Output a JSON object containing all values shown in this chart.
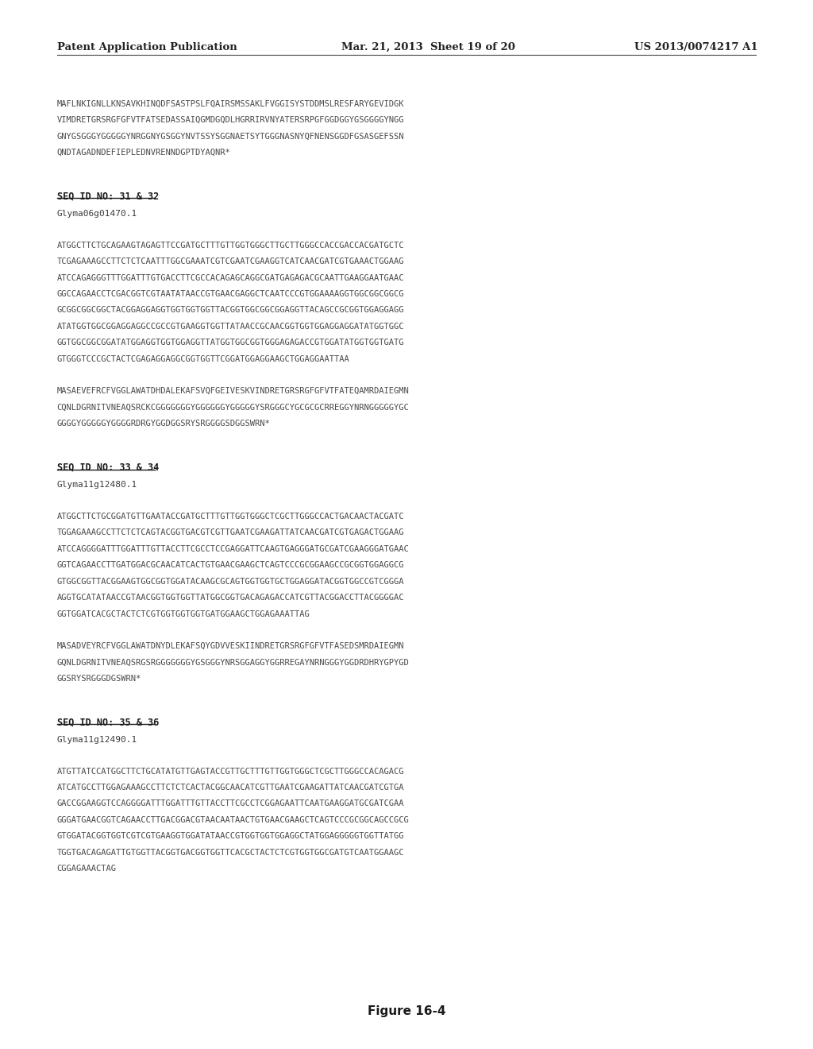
{
  "bg_color": "#ffffff",
  "header_left": "Patent Application Publication",
  "header_mid": "Mar. 21, 2013  Sheet 19 of 20",
  "header_right": "US 2013/0074217 A1",
  "figure_caption": "Figure 16-4",
  "text_color": "#3a3a3a",
  "mono_color": "#4a4a4a",
  "sections": [
    {
      "type": "sequence_block",
      "text": "MAFLNKIGNLLKNSAVKHINQDFSASTPSLFQAIRSMSSAKLFVGGISYSTDDMSLRESFARYGEVIDGK\nVIMDRETGRSRGFGFVTFATSEDASSAIQGMDGQDLHGRRIRVNYATERSRPGFGGDGGYGSGGGGYNGG\nGNYGSGGGYGGGGGYNRGGNYGSGGYNVTSSYSGGNAETSYTGGGNASNYQFNENSGGDFGSASGEFSSN\nQNDTAGADNDEFIEPLEDNVRENNDGPTDYAQNR*"
    },
    {
      "type": "seq_id",
      "label": "SEQ ID NO: 31 & 32",
      "sublabel": "Glyma06g01470.1"
    },
    {
      "type": "sequence_block",
      "text": "ATGGCTTCTGCAGAAGTAGAGTTCCGATGCTTTGTTGGTGGGCTTGCTTGGGCCACCGACCACGATGCTC\nTCGAGAAAGCCTTCTCTCAATTTGGCGAAATCGTCGAATCGAAGGTCATCAACGATCGTGAAACTGGAAG\nATCCAGAGGGTTTGGATTTGTGACCTTCGCCACAGAGCAGGCGATGAGAGACGCAATTGAAGGAATGAAC\nGGCCAGAACCTCGACGGTCGTAATATAACCGTGAACGAGGCTCAATCCCGTGGAAAAGGTGGCGGCGGCG\nGCGGCGGCGGCTACGGAGGAGGTGGTGGTGGTTACGGTGGCGGCGGAGGTTACAGCCGCGGTGGAGGAGG\nATATGGTGGCGGAGGAGGCCGCCGTGAAGGTGGTTATAACCGCAACGGTGGTGGAGGAGGATATGGTGGC\nGGTGGCGGCGGATATGGAGGTGGTGGAGGTTATGGTGGCGGTGGGAGAGACCGTGGATATGGTGGTGATG\nGTGGGTCCCGCTACTCGAGAGGAGGCGGTGGTTCGGATGGAGGAAGCTGGAGGAATTAA"
    },
    {
      "type": "sequence_block",
      "text": "MASAEVEFRCFVGGLAWATDHDALEKAFSVQFGEIVESKVINDRETGRSRGFGFVTFATEQAMRDAIEGMN\nCQNLDGRNITVNEAQSRCKCGGGGGGGYGGGGGGYGGGGGYSRGGGCYGCGCGCRREGGYNRNGGGGGYGC\nGGGGYGGGGGYGGGGRDRGYGGDGGSRYSRGGGGSDGGSWRN*"
    },
    {
      "type": "seq_id",
      "label": "SEQ ID NO: 33 & 34",
      "sublabel": "Glyma11g12480.1"
    },
    {
      "type": "sequence_block",
      "text": "ATGGCTTCTGCGGATGTTGAATACCGATGCTTTGTTGGTGGGCTCGCTTGGGCCACTGACAACTACGATC\nTGGAGAAAGCCTTCTCTCAGTACGGTGACGTCGTTGAATCGAAGATTATCAACGATCGTGAGACTGGAAG\nATCCAGGGGATTTGGATTTGTTACCTTCGCCTCCGAGGATTCAAGTGAGGGATGCGATCGAAGGGATGAAC\nGGTCAGAACCTTGATGGACGCAACATCACTGTGAACGAAGCTCAGTCCCGCGGAAGCCGCGGTGGAGGCG\nGTGGCGGTTACGGAAGTGGCGGTGGATACAAGCGCAGTGGTGGTGCTGGAGGATACGGTGGCCGTCGGGA\nAGGTGCATATAACCGTAACGGTGGTGGTTATGGCGGTGACAGAGACCATCGTTACGGACCTTACGGGGAC\nGGTGGATCACGCTACTCTCGTGGTGGTGGTGATGGAAGCTGGAGAAATTAG"
    },
    {
      "type": "sequence_block",
      "text": "MASADVEYRCFVGGLAWATDNYDLEKAFSQYGDVVESKIINDRETGRSRGFGFVTFASEDSMRDAIEGMN\nGQNLDGRNITVNEAQSRGSRGGGGGGGYGSGGGYNRSGGAGGYGGRREGAYNRNGGGYGGDRDHRYGPYGD\nGGSRYSRGGGDGSWRN*"
    },
    {
      "type": "seq_id",
      "label": "SEQ ID NO: 35 & 36",
      "sublabel": "Glyma11g12490.1"
    },
    {
      "type": "sequence_block",
      "text": "ATGTTATCCATGGCTTCTGCATATGTTGAGTACCGTTGCTTTGTTGGTGGGCTCGCTTGGGCCACAGACG\nATCATGCCTTGGAGAAAGCCTTCTCTCACTACGGCAACATCGTTGAATCGAAGATTATCAACGATCGTGA\nGACCGGAAGGTCCAGGGGATTTGGATTTGTTACCTTCGCCTCGGAGAATTCAATGAAGGATGCGATCGAA\nGGGATGAACGGTCAGAACCTTGACGGACGTAACAATAACTGTGAACGAAGCTCAGTCCCGCGGCAGCCGCG\nGTGGATACGGTGGTCGTCGTGAAGGTGGATATAACCGTGGTGGTGGAGGCTATGGAGGGGGTGGTTATGG\nTGGTGACAGAGATTGTGGTTACGGTGACGGTGGTTCACGCTACTCTCGTGGTGGCGATGTCAATGGAAGC\nCGGAGAAACTAG"
    }
  ]
}
